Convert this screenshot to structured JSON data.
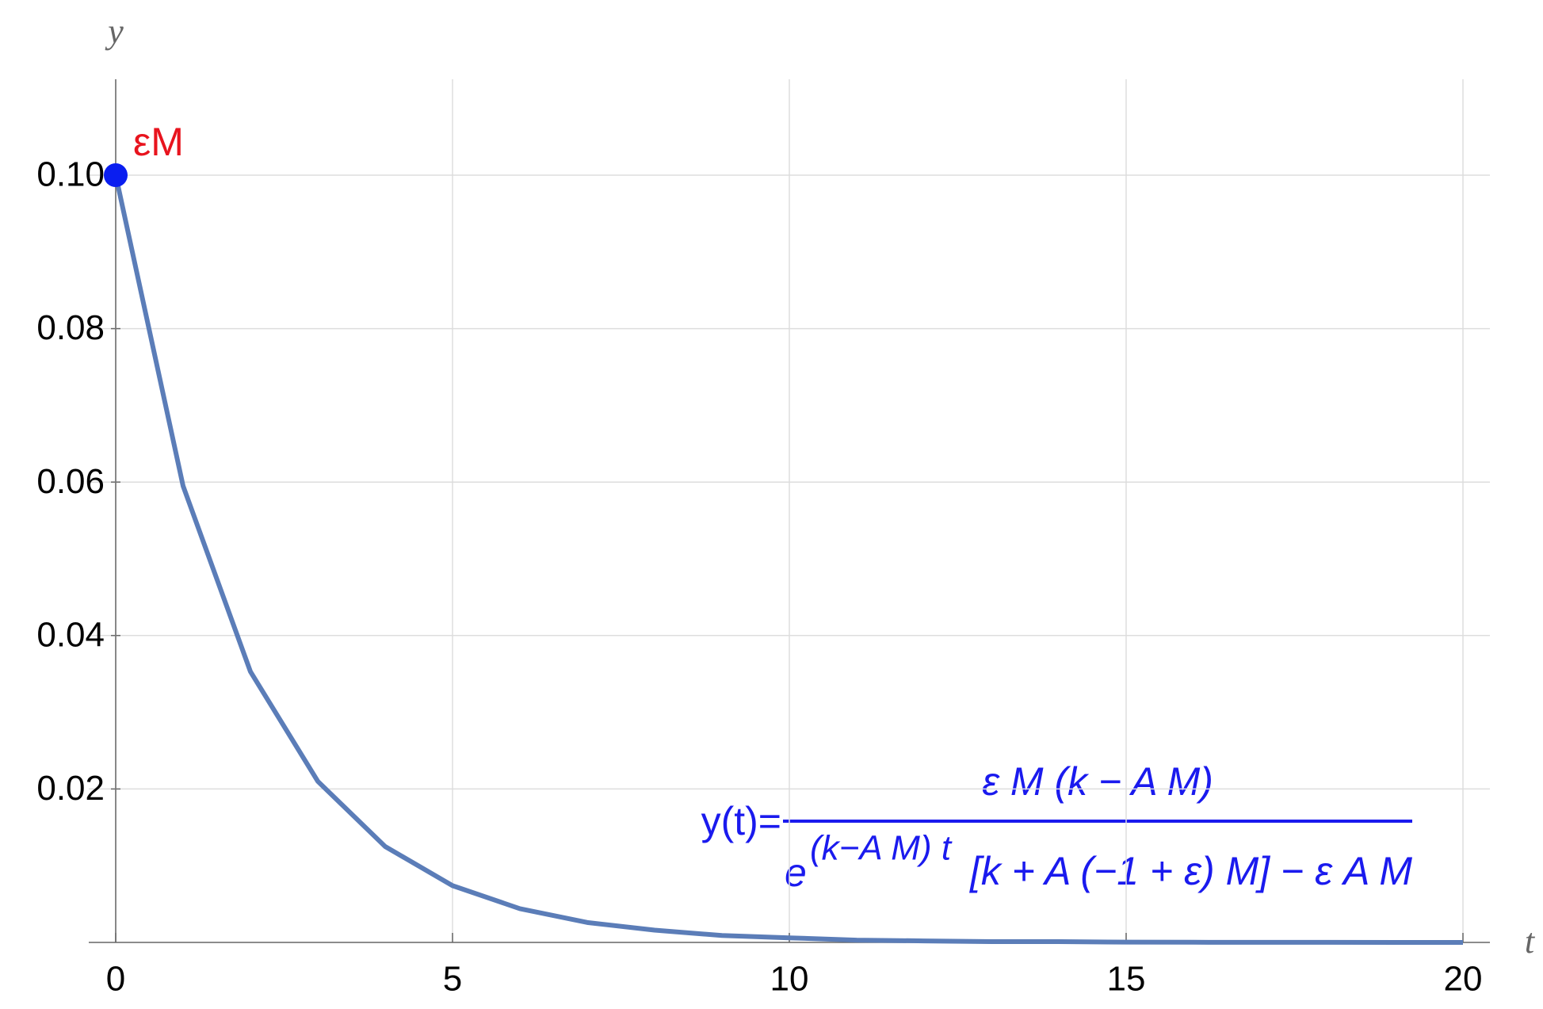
{
  "chart_data": {
    "type": "line",
    "x_label": "t",
    "y_label": "y",
    "x": [
      0,
      1,
      2,
      3,
      4,
      5,
      6,
      7,
      8,
      9,
      10,
      11,
      12,
      13,
      14,
      15,
      16,
      17,
      18,
      19,
      20
    ],
    "series": [
      {
        "color": "#5b7db8",
        "values": [
          0.1,
          0.0595,
          0.0353,
          0.021,
          0.0125,
          0.0074,
          0.0044,
          0.0026,
          0.0016,
          0.0009,
          0.0006,
          0.0003,
          0.0002,
          0.0001,
          0.0001,
          4e-05,
          2e-05,
          1e-05,
          1e-05,
          0,
          0
        ]
      }
    ],
    "points": [
      {
        "x": 0,
        "y": 0.1,
        "label": "εM",
        "color": "#0a1ef0",
        "label_color": "#e8141e"
      }
    ],
    "xlim": [
      -0.4,
      20.4
    ],
    "ylim": [
      0,
      0.1125
    ],
    "xticks": [
      0,
      5,
      10,
      15,
      20
    ],
    "yticks": [
      0.02,
      0.04,
      0.06,
      0.08,
      {
        "value": 0.1,
        "label": "0.10"
      }
    ],
    "grid": true,
    "formula": {
      "lhs": "y(t)=",
      "numerator": "ε M (k − A M)",
      "denominator_base": "e",
      "denominator_exponent": "(k−A M) t",
      "denominator_rest": "[k + A (−1 + ε) M] − ε A M"
    }
  }
}
